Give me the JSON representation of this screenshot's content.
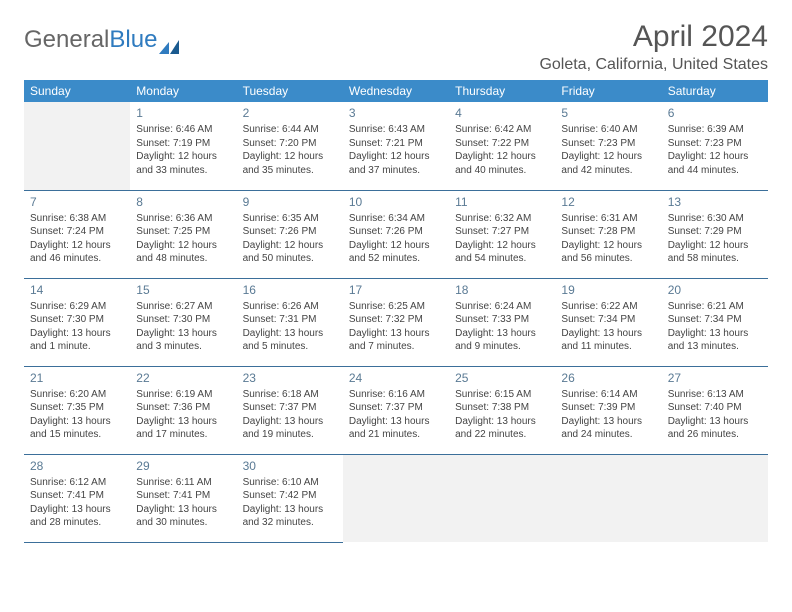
{
  "brand": {
    "part1": "General",
    "part2": "Blue"
  },
  "title": "April 2024",
  "location": "Goleta, California, United States",
  "colors": {
    "header_bg": "#3b8bc9",
    "header_fg": "#ffffff",
    "divider": "#3b6f9a",
    "empty_bg": "#f2f2f2",
    "daynum": "#5a7a94",
    "text": "#444444",
    "brand_gray": "#666666",
    "brand_blue": "#2f7bbf"
  },
  "typography": {
    "title_fontsize": 30,
    "location_fontsize": 16,
    "th_fontsize": 12,
    "cell_fontsize": 10,
    "daynum_fontsize": 12
  },
  "weekdays": [
    "Sunday",
    "Monday",
    "Tuesday",
    "Wednesday",
    "Thursday",
    "Friday",
    "Saturday"
  ],
  "weeks": [
    [
      null,
      {
        "d": "1",
        "sr": "Sunrise: 6:46 AM",
        "ss": "Sunset: 7:19 PM",
        "dl": "Daylight: 12 hours and 33 minutes."
      },
      {
        "d": "2",
        "sr": "Sunrise: 6:44 AM",
        "ss": "Sunset: 7:20 PM",
        "dl": "Daylight: 12 hours and 35 minutes."
      },
      {
        "d": "3",
        "sr": "Sunrise: 6:43 AM",
        "ss": "Sunset: 7:21 PM",
        "dl": "Daylight: 12 hours and 37 minutes."
      },
      {
        "d": "4",
        "sr": "Sunrise: 6:42 AM",
        "ss": "Sunset: 7:22 PM",
        "dl": "Daylight: 12 hours and 40 minutes."
      },
      {
        "d": "5",
        "sr": "Sunrise: 6:40 AM",
        "ss": "Sunset: 7:23 PM",
        "dl": "Daylight: 12 hours and 42 minutes."
      },
      {
        "d": "6",
        "sr": "Sunrise: 6:39 AM",
        "ss": "Sunset: 7:23 PM",
        "dl": "Daylight: 12 hours and 44 minutes."
      }
    ],
    [
      {
        "d": "7",
        "sr": "Sunrise: 6:38 AM",
        "ss": "Sunset: 7:24 PM",
        "dl": "Daylight: 12 hours and 46 minutes."
      },
      {
        "d": "8",
        "sr": "Sunrise: 6:36 AM",
        "ss": "Sunset: 7:25 PM",
        "dl": "Daylight: 12 hours and 48 minutes."
      },
      {
        "d": "9",
        "sr": "Sunrise: 6:35 AM",
        "ss": "Sunset: 7:26 PM",
        "dl": "Daylight: 12 hours and 50 minutes."
      },
      {
        "d": "10",
        "sr": "Sunrise: 6:34 AM",
        "ss": "Sunset: 7:26 PM",
        "dl": "Daylight: 12 hours and 52 minutes."
      },
      {
        "d": "11",
        "sr": "Sunrise: 6:32 AM",
        "ss": "Sunset: 7:27 PM",
        "dl": "Daylight: 12 hours and 54 minutes."
      },
      {
        "d": "12",
        "sr": "Sunrise: 6:31 AM",
        "ss": "Sunset: 7:28 PM",
        "dl": "Daylight: 12 hours and 56 minutes."
      },
      {
        "d": "13",
        "sr": "Sunrise: 6:30 AM",
        "ss": "Sunset: 7:29 PM",
        "dl": "Daylight: 12 hours and 58 minutes."
      }
    ],
    [
      {
        "d": "14",
        "sr": "Sunrise: 6:29 AM",
        "ss": "Sunset: 7:30 PM",
        "dl": "Daylight: 13 hours and 1 minute."
      },
      {
        "d": "15",
        "sr": "Sunrise: 6:27 AM",
        "ss": "Sunset: 7:30 PM",
        "dl": "Daylight: 13 hours and 3 minutes."
      },
      {
        "d": "16",
        "sr": "Sunrise: 6:26 AM",
        "ss": "Sunset: 7:31 PM",
        "dl": "Daylight: 13 hours and 5 minutes."
      },
      {
        "d": "17",
        "sr": "Sunrise: 6:25 AM",
        "ss": "Sunset: 7:32 PM",
        "dl": "Daylight: 13 hours and 7 minutes."
      },
      {
        "d": "18",
        "sr": "Sunrise: 6:24 AM",
        "ss": "Sunset: 7:33 PM",
        "dl": "Daylight: 13 hours and 9 minutes."
      },
      {
        "d": "19",
        "sr": "Sunrise: 6:22 AM",
        "ss": "Sunset: 7:34 PM",
        "dl": "Daylight: 13 hours and 11 minutes."
      },
      {
        "d": "20",
        "sr": "Sunrise: 6:21 AM",
        "ss": "Sunset: 7:34 PM",
        "dl": "Daylight: 13 hours and 13 minutes."
      }
    ],
    [
      {
        "d": "21",
        "sr": "Sunrise: 6:20 AM",
        "ss": "Sunset: 7:35 PM",
        "dl": "Daylight: 13 hours and 15 minutes."
      },
      {
        "d": "22",
        "sr": "Sunrise: 6:19 AM",
        "ss": "Sunset: 7:36 PM",
        "dl": "Daylight: 13 hours and 17 minutes."
      },
      {
        "d": "23",
        "sr": "Sunrise: 6:18 AM",
        "ss": "Sunset: 7:37 PM",
        "dl": "Daylight: 13 hours and 19 minutes."
      },
      {
        "d": "24",
        "sr": "Sunrise: 6:16 AM",
        "ss": "Sunset: 7:37 PM",
        "dl": "Daylight: 13 hours and 21 minutes."
      },
      {
        "d": "25",
        "sr": "Sunrise: 6:15 AM",
        "ss": "Sunset: 7:38 PM",
        "dl": "Daylight: 13 hours and 22 minutes."
      },
      {
        "d": "26",
        "sr": "Sunrise: 6:14 AM",
        "ss": "Sunset: 7:39 PM",
        "dl": "Daylight: 13 hours and 24 minutes."
      },
      {
        "d": "27",
        "sr": "Sunrise: 6:13 AM",
        "ss": "Sunset: 7:40 PM",
        "dl": "Daylight: 13 hours and 26 minutes."
      }
    ],
    [
      {
        "d": "28",
        "sr": "Sunrise: 6:12 AM",
        "ss": "Sunset: 7:41 PM",
        "dl": "Daylight: 13 hours and 28 minutes."
      },
      {
        "d": "29",
        "sr": "Sunrise: 6:11 AM",
        "ss": "Sunset: 7:41 PM",
        "dl": "Daylight: 13 hours and 30 minutes."
      },
      {
        "d": "30",
        "sr": "Sunrise: 6:10 AM",
        "ss": "Sunset: 7:42 PM",
        "dl": "Daylight: 13 hours and 32 minutes."
      },
      null,
      null,
      null,
      null
    ]
  ]
}
